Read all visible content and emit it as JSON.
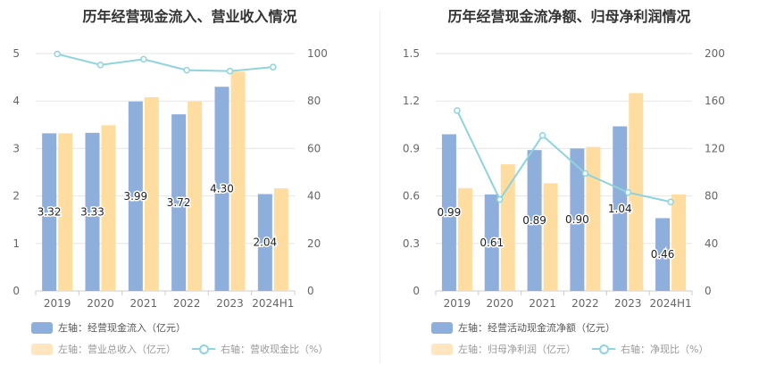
{
  "charts": [
    {
      "title": "历年经营现金流入、营业收入情况",
      "legend": [
        {
          "label": "左轴：经营现金流入（亿元）",
          "color": "#8eaedc"
        },
        {
          "label": "左轴：营业总收入（亿元）",
          "color": "#ffdca0"
        },
        {
          "label": "右轴：营收现金比（%）",
          "color": "#8fd4dc"
        }
      ]
    },
    {
      "title": "历年经营现金流净额、归母净利润情况",
      "legend": [
        {
          "label": "左轴：经营活动现金流净额（亿元）",
          "color": "#8eaedc"
        },
        {
          "label": "左轴：归母净利润（亿元）",
          "color": "#ffdca0"
        },
        {
          "label": "右轴：净现比（%）",
          "color": "#8fd4dc"
        }
      ]
    }
  ],
  "chart_data": [
    {
      "type": "bar",
      "title": "历年经营现金流入、营业收入情况",
      "categories": [
        "2019",
        "2020",
        "2021",
        "2022",
        "2023",
        "2024H1"
      ],
      "y_left": {
        "ticks": [
          "0",
          "1",
          "2",
          "3",
          "4",
          "5"
        ],
        "range": [
          0,
          5
        ]
      },
      "y_right": {
        "ticks": [
          "0",
          "20",
          "40",
          "60",
          "80",
          "100"
        ],
        "range": [
          0,
          100
        ]
      },
      "series": [
        {
          "name": "左轴：经营现金流入（亿元）",
          "axis": "left",
          "kind": "bar",
          "color": "#8eaedc",
          "values": [
            3.32,
            3.33,
            3.99,
            3.72,
            4.3,
            2.04
          ],
          "labels": [
            "3.32",
            "3.33",
            "3.99",
            "3.72",
            "4.30",
            "2.04"
          ]
        },
        {
          "name": "左轴：营业总收入（亿元）",
          "axis": "left",
          "kind": "bar",
          "color": "#ffdca0",
          "values": [
            3.32,
            3.49,
            4.08,
            3.99,
            4.62,
            2.16
          ]
        },
        {
          "name": "右轴：营收现金比（%）",
          "axis": "right",
          "kind": "line",
          "color": "#8fd4dc",
          "values": [
            99.8,
            95.2,
            97.6,
            93.0,
            92.6,
            94.3
          ]
        }
      ],
      "grid": true
    },
    {
      "type": "bar",
      "title": "历年经营现金流净额、归母净利润情况",
      "categories": [
        "2019",
        "2020",
        "2021",
        "2022",
        "2023",
        "2024H1"
      ],
      "y_left": {
        "ticks": [
          "0",
          "0.3",
          "0.6",
          "0.9",
          "1.2",
          "1.5"
        ],
        "range": [
          0,
          1.5
        ]
      },
      "y_right": {
        "ticks": [
          "0",
          "40",
          "80",
          "120",
          "160",
          "200"
        ],
        "range": [
          0,
          200
        ]
      },
      "series": [
        {
          "name": "左轴：经营活动现金流净额（亿元）",
          "axis": "left",
          "kind": "bar",
          "color": "#8eaedc",
          "values": [
            0.99,
            0.61,
            0.89,
            0.9,
            1.04,
            0.46
          ],
          "labels": [
            "0.99",
            "0.61",
            "0.89",
            "0.90",
            "1.04",
            "0.46"
          ]
        },
        {
          "name": "左轴：归母净利润（亿元）",
          "axis": "left",
          "kind": "bar",
          "color": "#ffdca0",
          "values": [
            0.65,
            0.8,
            0.68,
            0.91,
            1.25,
            0.61
          ]
        },
        {
          "name": "右轴：净现比（%）",
          "axis": "right",
          "kind": "line",
          "color": "#8fd4dc",
          "values": [
            152,
            77,
            131,
            99,
            83,
            75
          ]
        }
      ],
      "grid": true
    }
  ]
}
